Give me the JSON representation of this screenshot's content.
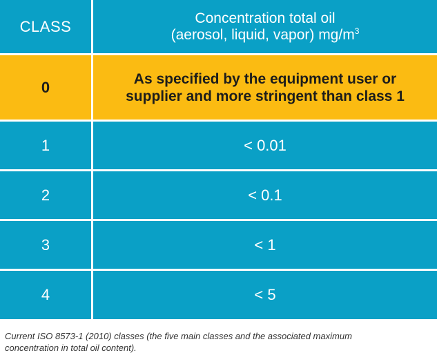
{
  "table": {
    "header": {
      "class_label": "CLASS",
      "concentration_line1": "Concentration total oil",
      "concentration_line2": "(aerosol, liquid, vapor) mg/m",
      "concentration_unit_superscript": "3"
    },
    "rows": [
      {
        "class": "0",
        "concentration_line1": "As specified by the equipment user or",
        "concentration_line2": "supplier and more stringent than class 1",
        "highlight_color": "#fbbb12"
      },
      {
        "class": "1",
        "concentration": "< 0.01"
      },
      {
        "class": "2",
        "concentration": "< 0.1"
      },
      {
        "class": "3",
        "concentration": "< 1"
      },
      {
        "class": "4",
        "concentration": "< 5"
      }
    ],
    "cell_color": "#0aa0c6"
  },
  "caption": {
    "line1": "Current ISO 8573-1 (2010) classes (the five main classes and the associated maximum",
    "line2": "concentration in total oil content)."
  }
}
